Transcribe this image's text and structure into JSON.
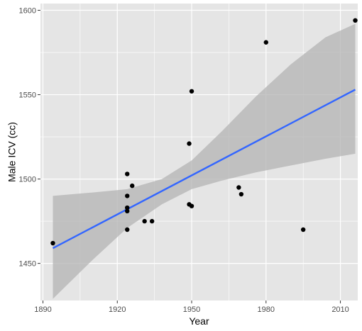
{
  "chart_data": {
    "type": "scatter",
    "title": "",
    "xlabel": "Year",
    "ylabel": "Male ICV (cc)",
    "xlim": [
      1889,
      2017
    ],
    "ylim": [
      1428,
      1604
    ],
    "x_ticks": [
      1890,
      1920,
      1950,
      1980,
      2010
    ],
    "y_ticks": [
      1450,
      1500,
      1550,
      1600
    ],
    "grid": true,
    "points": [
      {
        "x": 1894,
        "y": 1462
      },
      {
        "x": 1924,
        "y": 1503
      },
      {
        "x": 1924,
        "y": 1490
      },
      {
        "x": 1924,
        "y": 1483
      },
      {
        "x": 1924,
        "y": 1481
      },
      {
        "x": 1924,
        "y": 1470
      },
      {
        "x": 1926,
        "y": 1496
      },
      {
        "x": 1931,
        "y": 1475
      },
      {
        "x": 1934,
        "y": 1475
      },
      {
        "x": 1949,
        "y": 1521
      },
      {
        "x": 1949,
        "y": 1485
      },
      {
        "x": 1950,
        "y": 1484
      },
      {
        "x": 1950,
        "y": 1552
      },
      {
        "x": 1969,
        "y": 1495
      },
      {
        "x": 1970,
        "y": 1491
      },
      {
        "x": 1980,
        "y": 1581
      },
      {
        "x": 1995,
        "y": 1470
      },
      {
        "x": 2016,
        "y": 1594
      }
    ],
    "trend_line": {
      "x": [
        1894,
        2016
      ],
      "y": [
        1459,
        1553
      ]
    },
    "confidence_band": {
      "x": [
        1894,
        1910,
        1924,
        1938,
        1950,
        1962,
        1976,
        1990,
        2004,
        2016
      ],
      "upper": [
        1490,
        1492,
        1494,
        1500,
        1511,
        1528,
        1549,
        1568,
        1584,
        1592
      ],
      "lower": [
        1429,
        1452,
        1471,
        1485,
        1494,
        1499,
        1504,
        1508,
        1512,
        1515
      ]
    },
    "colors": {
      "panel": "#e5e5e5",
      "grid": "#ffffff",
      "points": "#000000",
      "line": "#3366ff",
      "band": "#b3b3b3"
    }
  }
}
